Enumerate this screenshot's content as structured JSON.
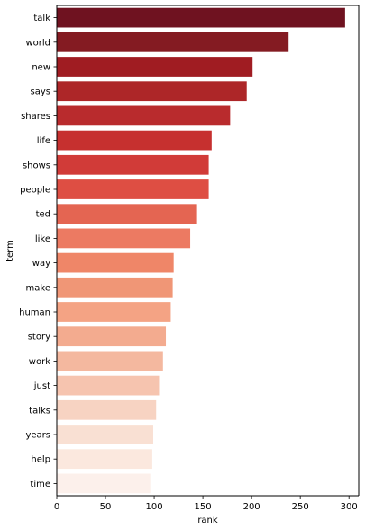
{
  "chart_data": {
    "type": "bar",
    "orientation": "horizontal",
    "title": "",
    "xlabel": "rank",
    "ylabel": "term",
    "xlim": [
      0,
      310
    ],
    "xticks": [
      0,
      50,
      100,
      150,
      200,
      250,
      300
    ],
    "grid": false,
    "legend": "none",
    "categories": [
      "talk",
      "world",
      "new",
      "says",
      "shares",
      "life",
      "shows",
      "people",
      "ted",
      "like",
      "way",
      "make",
      "human",
      "story",
      "work",
      "just",
      "talks",
      "years",
      "help",
      "time"
    ],
    "values": [
      296,
      238,
      201,
      195,
      178,
      159,
      156,
      156,
      144,
      137,
      120,
      119,
      117,
      112,
      109,
      105,
      102,
      99,
      98,
      96
    ],
    "colors": [
      "#6f1220",
      "#841b22",
      "#a01c22",
      "#ad2628",
      "#b92b2d",
      "#c6302f",
      "#d13b38",
      "#de4e43",
      "#e46552",
      "#ec7a62",
      "#ef8668",
      "#f09676",
      "#f4a384",
      "#f3ab8f",
      "#f4b89f",
      "#f6c4af",
      "#f7d3c2",
      "#f9e0d3",
      "#fbe8de",
      "#fcf0eb"
    ]
  }
}
